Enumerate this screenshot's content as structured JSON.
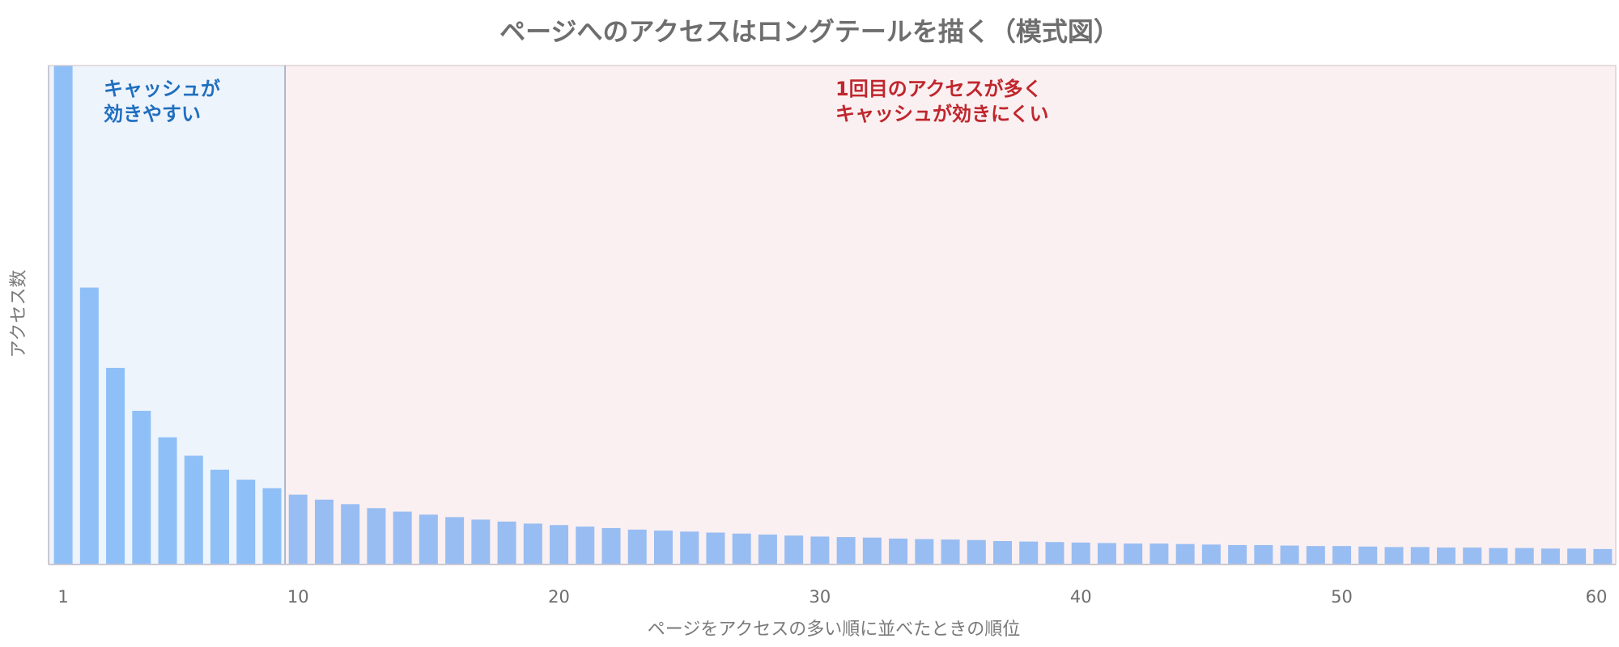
{
  "chart_data": {
    "type": "bar",
    "title": "ページへのアクセスはロングテールを描く（模式図）",
    "xlabel": "ページをアクセスの多い順に並べたときの順位",
    "ylabel": "アクセス数",
    "x_ticks": [
      "1",
      "10",
      "20",
      "30",
      "40",
      "50",
      "60"
    ],
    "x_range": [
      1,
      60
    ],
    "y_range": [
      0,
      1
    ],
    "y_ticks_shown": false,
    "grid": false,
    "regions": [
      {
        "from_rank": 1,
        "to_rank": 9,
        "label_line1": "キャッシュが",
        "label_line2": "効きやすい",
        "text_color": "#1f6fbf",
        "fill_color": "#eef4fc"
      },
      {
        "from_rank": 10,
        "to_rank": 60,
        "label_line1": "1回目のアクセスが多く",
        "label_line2": "キャッシュが効きにくい",
        "text_color": "#c0262d",
        "fill_color": "#faf0f1"
      }
    ],
    "series": [
      {
        "x": [
          1,
          2,
          3,
          4,
          5,
          6,
          7,
          8,
          9,
          10,
          11,
          12,
          13,
          14,
          15,
          16,
          17,
          18,
          19,
          20,
          21,
          22,
          23,
          24,
          25,
          26,
          27,
          28,
          29,
          30,
          31,
          32,
          33,
          34,
          35,
          36,
          37,
          38,
          39,
          40,
          41,
          42,
          43,
          44,
          45,
          46,
          47,
          48,
          49,
          50,
          51,
          52,
          53,
          54,
          55,
          56,
          57,
          58,
          59,
          60
        ],
        "values": [
          1.0,
          0.555,
          0.394,
          0.308,
          0.255,
          0.218,
          0.19,
          0.17,
          0.153,
          0.14,
          0.13,
          0.121,
          0.113,
          0.106,
          0.1,
          0.095,
          0.09,
          0.086,
          0.082,
          0.079,
          0.076,
          0.073,
          0.07,
          0.068,
          0.066,
          0.064,
          0.062,
          0.06,
          0.058,
          0.056,
          0.055,
          0.054,
          0.052,
          0.051,
          0.05,
          0.049,
          0.047,
          0.046,
          0.045,
          0.044,
          0.043,
          0.042,
          0.042,
          0.041,
          0.04,
          0.039,
          0.039,
          0.038,
          0.037,
          0.037,
          0.036,
          0.035,
          0.035,
          0.034,
          0.034,
          0.033,
          0.033,
          0.032,
          0.032,
          0.031
        ],
        "color": "#8fbff7",
        "color_highlight": "#8fbff7",
        "color_tail": "#98bdf2"
      }
    ],
    "colors": {
      "divider": "#9aa3c0",
      "frame": "#d8c7cc",
      "axis": "#c9c9d4"
    }
  }
}
